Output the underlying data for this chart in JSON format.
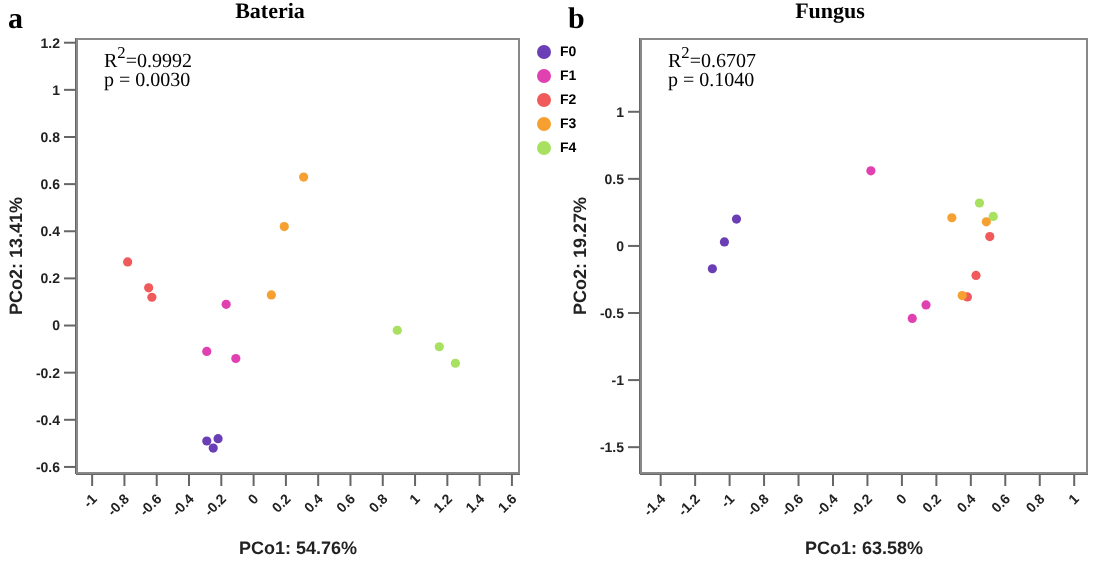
{
  "chart_data": [
    {
      "type": "scatter",
      "title": "Bateria",
      "xlabel": "PCo1: 54.76%",
      "ylabel": "PCo2: 13.41%",
      "annotations": [
        "a",
        "R$^{2}$=0.9992",
        "p = 0.0030"
      ],
      "xlim": [
        -1.1,
        1.65
      ],
      "ylim": [
        -0.63,
        1.22
      ],
      "xticks": [
        -1,
        -0.8,
        -0.6,
        -0.4,
        -0.2,
        0,
        0.2,
        0.4,
        0.6,
        0.8,
        1,
        1.2,
        1.4,
        1.6
      ],
      "yticks": [
        -0.6,
        -0.4,
        -0.2,
        0,
        0.2,
        0.4,
        0.6,
        0.8,
        1,
        1.2
      ],
      "grid": false,
      "legend": "right",
      "marker": "circle",
      "series": [
        {
          "name": "F0",
          "color": "#6a3fb5",
          "x": [
            -0.29,
            -0.22,
            -0.25
          ],
          "values": [
            -0.49,
            -0.48,
            -0.52
          ]
        },
        {
          "name": "F1",
          "color": "#e040b0",
          "x": [
            -0.17,
            -0.29,
            -0.11
          ],
          "values": [
            0.09,
            -0.11,
            -0.14
          ]
        },
        {
          "name": "F2",
          "color": "#f05a5a",
          "x": [
            -0.78,
            -0.65,
            -0.63
          ],
          "values": [
            0.27,
            0.16,
            0.12
          ]
        },
        {
          "name": "F3",
          "color": "#f5a030",
          "x": [
            0.31,
            0.19,
            0.11
          ],
          "values": [
            0.63,
            0.42,
            0.13
          ]
        },
        {
          "name": "F4",
          "color": "#a8e060",
          "x": [
            0.89,
            1.15,
            1.25
          ],
          "values": [
            -0.02,
            -0.09,
            -0.16
          ]
        }
      ]
    },
    {
      "type": "scatter",
      "title": "Fungus",
      "xlabel": "PCo1: 63.58%",
      "ylabel": "PCo2: 19.27%",
      "annotations": [
        "b",
        "R$^{2}$=0.6707",
        "p = 0.1040"
      ],
      "xlim": [
        -1.52,
        1.08
      ],
      "ylim": [
        -1.7,
        1.55
      ],
      "xticks": [
        -1.4,
        -1.2,
        -1,
        -0.8,
        -0.6,
        -0.4,
        -0.2,
        0,
        0.2,
        0.4,
        0.6,
        0.8,
        1
      ],
      "yticks": [
        -1.5,
        -1,
        -0.5,
        0,
        0.5,
        1
      ],
      "grid": false,
      "marker": "circle",
      "series": [
        {
          "color": "#6a3fb5",
          "x": [
            -0.96,
            -1.03,
            -1.1
          ],
          "values": [
            0.2,
            0.03,
            -0.17
          ]
        },
        {
          "color": "#e040b0",
          "x": [
            -0.18,
            0.14,
            0.06
          ],
          "values": [
            0.56,
            -0.44,
            -0.54
          ]
        },
        {
          "color": "#f05a5a",
          "x": [
            0.51,
            0.43,
            0.38
          ],
          "values": [
            0.07,
            -0.22,
            -0.38
          ]
        },
        {
          "color": "#f5a030",
          "x": [
            0.29,
            0.49,
            0.35
          ],
          "values": [
            0.21,
            0.18,
            -0.37
          ]
        },
        {
          "color": "#a8e060",
          "x": [
            0.45,
            0.53
          ],
          "values": [
            0.32,
            0.22
          ]
        }
      ]
    }
  ]
}
